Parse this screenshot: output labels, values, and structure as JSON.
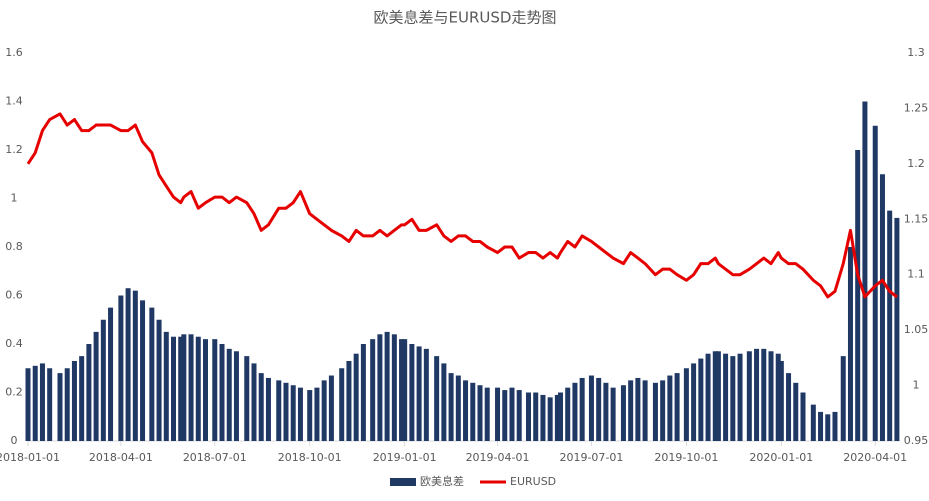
{
  "chart_data": {
    "type": "bar-line",
    "title": "欧美息差与EURUSD走势图",
    "x": [
      "2018-01-01",
      "2018-01-08",
      "2018-01-15",
      "2018-01-22",
      "2018-02-01",
      "2018-02-08",
      "2018-02-15",
      "2018-02-22",
      "2018-03-01",
      "2018-03-08",
      "2018-03-15",
      "2018-03-22",
      "2018-04-01",
      "2018-04-08",
      "2018-04-15",
      "2018-04-22",
      "2018-05-01",
      "2018-05-08",
      "2018-05-15",
      "2018-05-22",
      "2018-05-29",
      "2018-06-01",
      "2018-06-08",
      "2018-06-15",
      "2018-06-22",
      "2018-07-01",
      "2018-07-08",
      "2018-07-15",
      "2018-07-22",
      "2018-08-01",
      "2018-08-08",
      "2018-08-15",
      "2018-08-22",
      "2018-09-01",
      "2018-09-08",
      "2018-09-15",
      "2018-09-22",
      "2018-10-01",
      "2018-10-08",
      "2018-10-15",
      "2018-10-22",
      "2018-11-01",
      "2018-11-08",
      "2018-11-15",
      "2018-11-22",
      "2018-12-01",
      "2018-12-08",
      "2018-12-15",
      "2018-12-22",
      "2018-12-29",
      "2019-01-01",
      "2019-01-08",
      "2019-01-15",
      "2019-01-22",
      "2019-02-01",
      "2019-02-08",
      "2019-02-15",
      "2019-02-22",
      "2019-03-01",
      "2019-03-08",
      "2019-03-15",
      "2019-03-22",
      "2019-04-01",
      "2019-04-08",
      "2019-04-15",
      "2019-04-22",
      "2019-05-01",
      "2019-05-08",
      "2019-05-15",
      "2019-05-22",
      "2019-05-29",
      "2019-06-01",
      "2019-06-08",
      "2019-06-15",
      "2019-06-22",
      "2019-07-01",
      "2019-07-08",
      "2019-07-15",
      "2019-07-22",
      "2019-08-01",
      "2019-08-08",
      "2019-08-15",
      "2019-08-22",
      "2019-09-01",
      "2019-09-08",
      "2019-09-15",
      "2019-09-22",
      "2019-10-01",
      "2019-10-08",
      "2019-10-15",
      "2019-10-22",
      "2019-10-29",
      "2019-11-01",
      "2019-11-08",
      "2019-11-15",
      "2019-11-22",
      "2019-12-01",
      "2019-12-08",
      "2019-12-15",
      "2019-12-22",
      "2019-12-29",
      "2020-01-01",
      "2020-01-08",
      "2020-01-15",
      "2020-01-22",
      "2020-02-01",
      "2020-02-08",
      "2020-02-15",
      "2020-02-22",
      "2020-03-01",
      "2020-03-08",
      "2020-03-15",
      "2020-03-22",
      "2020-04-01",
      "2020-04-08",
      "2020-04-15",
      "2020-04-22"
    ],
    "series": [
      {
        "name": "欧美息差",
        "color": "#1f3864",
        "kind": "bar",
        "values": [
          0.3,
          0.31,
          0.32,
          0.3,
          0.28,
          0.3,
          0.33,
          0.35,
          0.4,
          0.45,
          0.5,
          0.55,
          0.6,
          0.63,
          0.62,
          0.58,
          0.55,
          0.5,
          0.45,
          0.43,
          0.43,
          0.44,
          0.44,
          0.43,
          0.42,
          0.42,
          0.4,
          0.38,
          0.37,
          0.35,
          0.32,
          0.28,
          0.26,
          0.25,
          0.24,
          0.23,
          0.22,
          0.21,
          0.22,
          0.25,
          0.27,
          0.3,
          0.33,
          0.36,
          0.4,
          0.42,
          0.44,
          0.45,
          0.44,
          0.42,
          0.42,
          0.4,
          0.39,
          0.38,
          0.35,
          0.32,
          0.28,
          0.27,
          0.25,
          0.24,
          0.23,
          0.22,
          0.22,
          0.21,
          0.22,
          0.21,
          0.2,
          0.2,
          0.19,
          0.18,
          0.19,
          0.2,
          0.22,
          0.24,
          0.26,
          0.27,
          0.26,
          0.24,
          0.22,
          0.23,
          0.25,
          0.26,
          0.25,
          0.24,
          0.25,
          0.27,
          0.28,
          0.3,
          0.32,
          0.34,
          0.36,
          0.37,
          0.37,
          0.36,
          0.35,
          0.36,
          0.37,
          0.38,
          0.38,
          0.37,
          0.36,
          0.33,
          0.28,
          0.24,
          0.2,
          0.15,
          0.12,
          0.11,
          0.12,
          0.35,
          0.8,
          1.2,
          1.4,
          1.3,
          1.1,
          0.95,
          0.92
        ]
      },
      {
        "name": "EURUSD",
        "color": "#e60000",
        "kind": "line",
        "axis": "y2",
        "values": [
          1.2,
          1.21,
          1.23,
          1.24,
          1.245,
          1.235,
          1.24,
          1.23,
          1.23,
          1.235,
          1.235,
          1.235,
          1.23,
          1.23,
          1.235,
          1.22,
          1.21,
          1.19,
          1.18,
          1.17,
          1.165,
          1.17,
          1.175,
          1.16,
          1.165,
          1.17,
          1.17,
          1.165,
          1.17,
          1.165,
          1.155,
          1.14,
          1.145,
          1.16,
          1.16,
          1.165,
          1.175,
          1.155,
          1.15,
          1.145,
          1.14,
          1.135,
          1.13,
          1.14,
          1.135,
          1.135,
          1.14,
          1.135,
          1.14,
          1.145,
          1.145,
          1.15,
          1.14,
          1.14,
          1.145,
          1.135,
          1.13,
          1.135,
          1.135,
          1.13,
          1.13,
          1.125,
          1.12,
          1.125,
          1.125,
          1.115,
          1.12,
          1.12,
          1.115,
          1.12,
          1.115,
          1.12,
          1.13,
          1.125,
          1.135,
          1.13,
          1.125,
          1.12,
          1.115,
          1.11,
          1.12,
          1.115,
          1.11,
          1.1,
          1.105,
          1.105,
          1.1,
          1.095,
          1.1,
          1.11,
          1.11,
          1.115,
          1.11,
          1.105,
          1.1,
          1.1,
          1.105,
          1.11,
          1.115,
          1.11,
          1.12,
          1.115,
          1.11,
          1.11,
          1.105,
          1.095,
          1.09,
          1.08,
          1.085,
          1.11,
          1.14,
          1.1,
          1.08,
          1.09,
          1.095,
          1.085,
          1.08
        ]
      }
    ],
    "xlim": [
      "2018-01-01",
      "2020-04-25"
    ],
    "xticks": [
      "2018-01-01",
      "2018-04-01",
      "2018-07-01",
      "2018-10-01",
      "2019-01-01",
      "2019-04-01",
      "2019-07-01",
      "2019-10-01",
      "2020-01-01",
      "2020-04-01"
    ],
    "ylim": [
      0,
      1.6
    ],
    "yticks": [
      0,
      0.2,
      0.4,
      0.6,
      0.8,
      1,
      1.2,
      1.4,
      1.6
    ],
    "y2lim": [
      0.95,
      1.3
    ],
    "y2ticks": [
      0.95,
      1,
      1.05,
      1.1,
      1.15,
      1.2,
      1.25,
      1.3
    ],
    "grid": false,
    "legend": "bottom"
  }
}
